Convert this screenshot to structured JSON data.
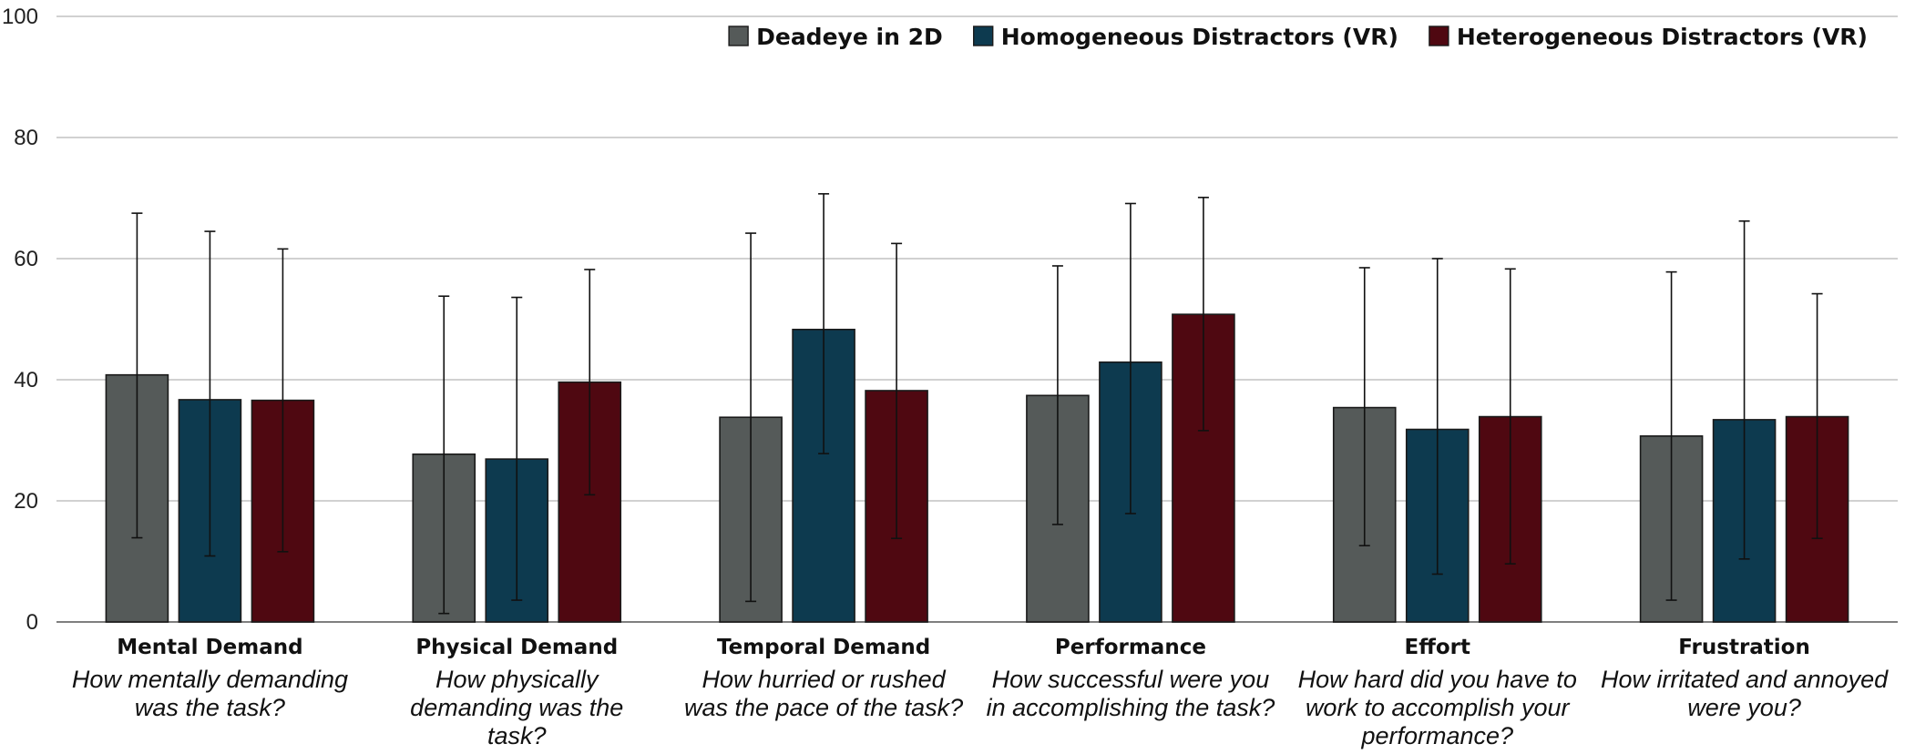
{
  "chart_data": {
    "type": "bar",
    "title": "",
    "xlabel": "",
    "ylabel": "",
    "ylim": [
      0,
      100
    ],
    "yticks": [
      0,
      20,
      40,
      60,
      80,
      100
    ],
    "grid": true,
    "legend_position": "top-right",
    "categories": [
      {
        "label": "Mental Demand",
        "question": [
          "How mentally demanding",
          "was the task?"
        ]
      },
      {
        "label": "Physical Demand",
        "question": [
          "How physically",
          "demanding was the",
          "task?"
        ]
      },
      {
        "label": "Temporal Demand",
        "question": [
          "How hurried or rushed",
          "was the pace of the task?"
        ]
      },
      {
        "label": "Performance",
        "question": [
          "How successful were you",
          "in accomplishing the task?"
        ]
      },
      {
        "label": "Effort",
        "question": [
          "How hard did you have to",
          "work to accomplish your",
          "performance?"
        ]
      },
      {
        "label": "Frustration",
        "question": [
          "How irritated and annoyed",
          "were you?"
        ]
      }
    ],
    "series": [
      {
        "name": "Deadeye in 2D",
        "color": "#555a59",
        "values": [
          40.8,
          27.7,
          33.8,
          37.4,
          35.4,
          30.7
        ],
        "err_low": [
          13.9,
          1.4,
          3.4,
          16.1,
          12.6,
          3.6
        ],
        "err_high": [
          67.5,
          53.8,
          64.2,
          58.8,
          58.5,
          57.8
        ]
      },
      {
        "name": "Homogeneous Distractors (VR)",
        "color": "#0d3a4f",
        "values": [
          36.7,
          26.9,
          48.3,
          42.9,
          31.8,
          33.4
        ],
        "err_low": [
          10.9,
          3.6,
          27.8,
          17.9,
          7.9,
          10.4
        ],
        "err_high": [
          64.5,
          53.6,
          70.7,
          69.1,
          60.0,
          66.2
        ]
      },
      {
        "name": "Heterogeneous Distractors (VR)",
        "color": "#4f0811",
        "values": [
          36.6,
          39.6,
          38.2,
          50.8,
          33.9,
          33.9
        ],
        "err_low": [
          11.6,
          21.0,
          13.8,
          31.6,
          9.6,
          13.8
        ],
        "err_high": [
          61.6,
          58.2,
          62.5,
          70.1,
          58.3,
          54.2
        ]
      }
    ]
  }
}
